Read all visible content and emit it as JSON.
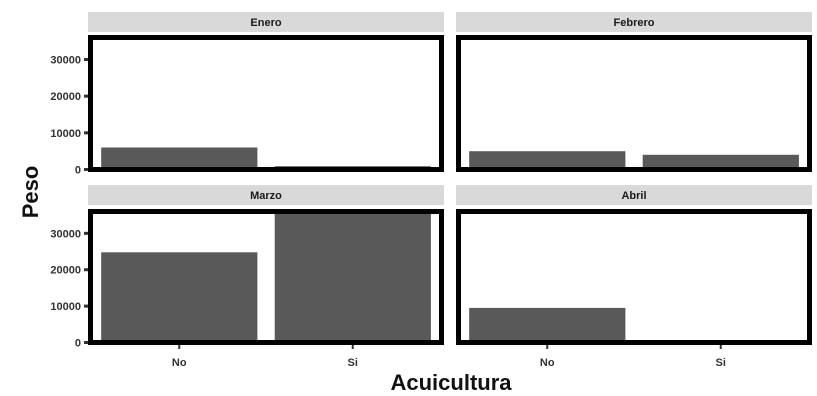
{
  "chart_data": {
    "type": "bar",
    "facets": [
      {
        "title": "Enero",
        "categories": [
          "No",
          "Si"
        ],
        "values": [
          6000,
          900
        ]
      },
      {
        "title": "Febrero",
        "categories": [
          "No",
          "Si"
        ],
        "values": [
          5000,
          4000
        ]
      },
      {
        "title": "Marzo",
        "categories": [
          "No",
          "Si"
        ],
        "values": [
          24800,
          35500
        ]
      },
      {
        "title": "Abril",
        "categories": [
          "No",
          "Si"
        ],
        "values": [
          9500,
          0
        ]
      }
    ],
    "xlabel": "Acuicultura",
    "ylabel": "Peso",
    "ylim": [
      0,
      36000
    ],
    "yticks": [
      0,
      10000,
      20000,
      30000
    ],
    "xtick_labels": [
      "No",
      "Si"
    ],
    "grid": false,
    "bar_color": "#595959",
    "strip_color": "#d9d9d9",
    "border_color": "#000000"
  }
}
